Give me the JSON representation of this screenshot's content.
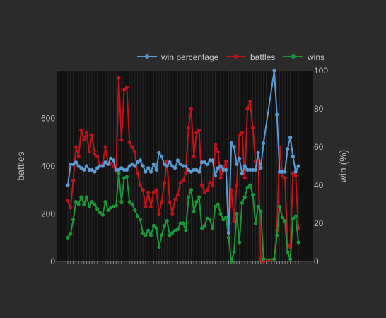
{
  "chart_data": {
    "type": "line",
    "title": "",
    "xlabel": "",
    "y_left_label": "battles",
    "y_right_label": "win (%)",
    "y_left_range": [
      0,
      800
    ],
    "y_left_ticks": [
      "0",
      "200",
      "400",
      "600"
    ],
    "y_left_tick_values": [
      0,
      200,
      400,
      600
    ],
    "y_right_range": [
      0,
      100
    ],
    "y_right_ticks": [
      "0",
      "20",
      "40",
      "60",
      "80",
      "100"
    ],
    "y_right_tick_values": [
      0,
      20,
      40,
      60,
      80,
      100
    ],
    "legend_position": "top",
    "legend": [
      "win percentage",
      "battles",
      "wins"
    ],
    "series": [
      {
        "name": "battles",
        "axis": "left",
        "color": "#c0121a",
        "points": [
          [
            1,
            255
          ],
          [
            2,
            225
          ],
          [
            3,
            340
          ],
          [
            4,
            480
          ],
          [
            5,
            440
          ],
          [
            6,
            550
          ],
          [
            7,
            510
          ],
          [
            8,
            540
          ],
          [
            9,
            460
          ],
          [
            10,
            530
          ],
          [
            11,
            450
          ],
          [
            12,
            440
          ],
          [
            13,
            400
          ],
          [
            14,
            410
          ],
          [
            15,
            480
          ],
          [
            16,
            410
          ],
          [
            17,
            410
          ],
          [
            18,
            400
          ],
          [
            19,
            380
          ],
          [
            20,
            770
          ],
          [
            21,
            510
          ],
          [
            22,
            720
          ],
          [
            23,
            730
          ],
          [
            24,
            500
          ],
          [
            25,
            480
          ],
          [
            26,
            460
          ],
          [
            27,
            370
          ],
          [
            28,
            320
          ],
          [
            29,
            300
          ],
          [
            30,
            230
          ],
          [
            31,
            290
          ],
          [
            32,
            230
          ],
          [
            33,
            290
          ],
          [
            34,
            300
          ],
          [
            35,
            200
          ],
          [
            36,
            250
          ],
          [
            37,
            330
          ],
          [
            38,
            420
          ],
          [
            39,
            250
          ],
          [
            40,
            200
          ],
          [
            41,
            260
          ],
          [
            42,
            280
          ],
          [
            43,
            330
          ],
          [
            44,
            340
          ],
          [
            45,
            370
          ],
          [
            46,
            560
          ],
          [
            47,
            640
          ],
          [
            48,
            440
          ],
          [
            49,
            540
          ],
          [
            50,
            550
          ],
          [
            51,
            320
          ],
          [
            52,
            290
          ],
          [
            53,
            300
          ],
          [
            54,
            330
          ],
          [
            55,
            320
          ],
          [
            56,
            490
          ],
          [
            57,
            460
          ],
          [
            58,
            350
          ],
          [
            59,
            390
          ],
          [
            60,
            420
          ],
          [
            61,
            120
          ],
          [
            62,
            300
          ],
          [
            63,
            170
          ],
          [
            64,
            320
          ],
          [
            65,
            530
          ],
          [
            66,
            540
          ],
          [
            67,
            350
          ],
          [
            68,
            640
          ],
          [
            69,
            670
          ],
          [
            70,
            560
          ],
          [
            71,
            420
          ],
          [
            72,
            430
          ],
          [
            73,
            10
          ],
          [
            74,
            0
          ],
          [
            78,
            10
          ],
          [
            79,
            130
          ],
          [
            80,
            480
          ],
          [
            81,
            360
          ],
          [
            82,
            350
          ],
          [
            83,
            70
          ],
          [
            84,
            60
          ],
          [
            85,
            370
          ],
          [
            86,
            360
          ],
          [
            87,
            140
          ]
        ]
      },
      {
        "name": "wins",
        "axis": "left",
        "color": "#1a9638",
        "points": [
          [
            1,
            100
          ],
          [
            2,
            115
          ],
          [
            3,
            175
          ],
          [
            4,
            250
          ],
          [
            5,
            240
          ],
          [
            6,
            270
          ],
          [
            7,
            240
          ],
          [
            8,
            270
          ],
          [
            9,
            230
          ],
          [
            10,
            250
          ],
          [
            11,
            240
          ],
          [
            12,
            220
          ],
          [
            13,
            205
          ],
          [
            14,
            195
          ],
          [
            15,
            250
          ],
          [
            16,
            215
          ],
          [
            17,
            225
          ],
          [
            18,
            230
          ],
          [
            19,
            235
          ],
          [
            20,
            370
          ],
          [
            21,
            250
          ],
          [
            22,
            350
          ],
          [
            23,
            355
          ],
          [
            24,
            250
          ],
          [
            25,
            240
          ],
          [
            26,
            215
          ],
          [
            27,
            190
          ],
          [
            28,
            175
          ],
          [
            29,
            120
          ],
          [
            30,
            110
          ],
          [
            31,
            130
          ],
          [
            32,
            110
          ],
          [
            33,
            150
          ],
          [
            34,
            140
          ],
          [
            35,
            60
          ],
          [
            36,
            110
          ],
          [
            37,
            150
          ],
          [
            38,
            170
          ],
          [
            39,
            110
          ],
          [
            40,
            120
          ],
          [
            41,
            130
          ],
          [
            42,
            135
          ],
          [
            43,
            160
          ],
          [
            44,
            160
          ],
          [
            45,
            130
          ],
          [
            46,
            270
          ],
          [
            47,
            300
          ],
          [
            48,
            210
          ],
          [
            49,
            250
          ],
          [
            50,
            270
          ],
          [
            51,
            140
          ],
          [
            52,
            150
          ],
          [
            53,
            180
          ],
          [
            54,
            175
          ],
          [
            55,
            140
          ],
          [
            56,
            230
          ],
          [
            57,
            240
          ],
          [
            58,
            200
          ],
          [
            59,
            175
          ],
          [
            60,
            185
          ],
          [
            61,
            100
          ],
          [
            62,
            0
          ],
          [
            63,
            40
          ],
          [
            64,
            200
          ],
          [
            65,
            80
          ],
          [
            66,
            245
          ],
          [
            67,
            270
          ],
          [
            68,
            310
          ],
          [
            69,
            320
          ],
          [
            70,
            280
          ],
          [
            71,
            160
          ],
          [
            72,
            230
          ],
          [
            73,
            210
          ],
          [
            74,
            10
          ],
          [
            78,
            10
          ],
          [
            79,
            110
          ],
          [
            80,
            230
          ],
          [
            81,
            185
          ],
          [
            82,
            170
          ],
          [
            83,
            40
          ],
          [
            84,
            10
          ],
          [
            85,
            180
          ],
          [
            86,
            190
          ],
          [
            87,
            80
          ]
        ]
      },
      {
        "name": "win percentage",
        "axis": "right",
        "color": "#5a9bd4",
        "points": [
          [
            1,
            40
          ],
          [
            2,
            51
          ],
          [
            3,
            51
          ],
          [
            4,
            52
          ],
          [
            5,
            50
          ],
          [
            6,
            49
          ],
          [
            7,
            48
          ],
          [
            8,
            50
          ],
          [
            9,
            48
          ],
          [
            10,
            48
          ],
          [
            11,
            47
          ],
          [
            12,
            49
          ],
          [
            13,
            50
          ],
          [
            14,
            50
          ],
          [
            15,
            52
          ],
          [
            16,
            51
          ],
          [
            17,
            54
          ],
          [
            18,
            53
          ],
          [
            19,
            48
          ],
          [
            20,
            48
          ],
          [
            21,
            49
          ],
          [
            22,
            48
          ],
          [
            23,
            48
          ],
          [
            24,
            50
          ],
          [
            25,
            51
          ],
          [
            26,
            50
          ],
          [
            27,
            52
          ],
          [
            28,
            53
          ],
          [
            29,
            50
          ],
          [
            30,
            47
          ],
          [
            31,
            49
          ],
          [
            32,
            47
          ],
          [
            33,
            51
          ],
          [
            34,
            48
          ],
          [
            35,
            57
          ],
          [
            36,
            55
          ],
          [
            37,
            51
          ],
          [
            38,
            50
          ],
          [
            39,
            52
          ],
          [
            40,
            50
          ],
          [
            41,
            49
          ],
          [
            42,
            53
          ],
          [
            43,
            51
          ],
          [
            44,
            50
          ],
          [
            45,
            50
          ],
          [
            46,
            48
          ],
          [
            47,
            47
          ],
          [
            48,
            48
          ],
          [
            49,
            48
          ],
          [
            50,
            47
          ],
          [
            51,
            52
          ],
          [
            52,
            52
          ],
          [
            53,
            51
          ],
          [
            54,
            53
          ],
          [
            55,
            53
          ],
          [
            56,
            45
          ],
          [
            57,
            49
          ],
          [
            58,
            50
          ],
          [
            59,
            48
          ],
          [
            60,
            48
          ],
          [
            61,
            15
          ],
          [
            62,
            62
          ],
          [
            63,
            60
          ],
          [
            64,
            51
          ],
          [
            65,
            54
          ],
          [
            66,
            46
          ],
          [
            67,
            50
          ],
          [
            68,
            48
          ],
          [
            69,
            48
          ],
          [
            70,
            48
          ],
          [
            71,
            48
          ],
          [
            72,
            57
          ],
          [
            73,
            49
          ],
          [
            74,
            62
          ],
          [
            78,
            100
          ],
          [
            79,
            77
          ],
          [
            80,
            47
          ],
          [
            81,
            47
          ],
          [
            82,
            47
          ],
          [
            83,
            59
          ],
          [
            84,
            65
          ],
          [
            85,
            55
          ],
          [
            86,
            47
          ],
          [
            87,
            50
          ]
        ]
      }
    ]
  }
}
